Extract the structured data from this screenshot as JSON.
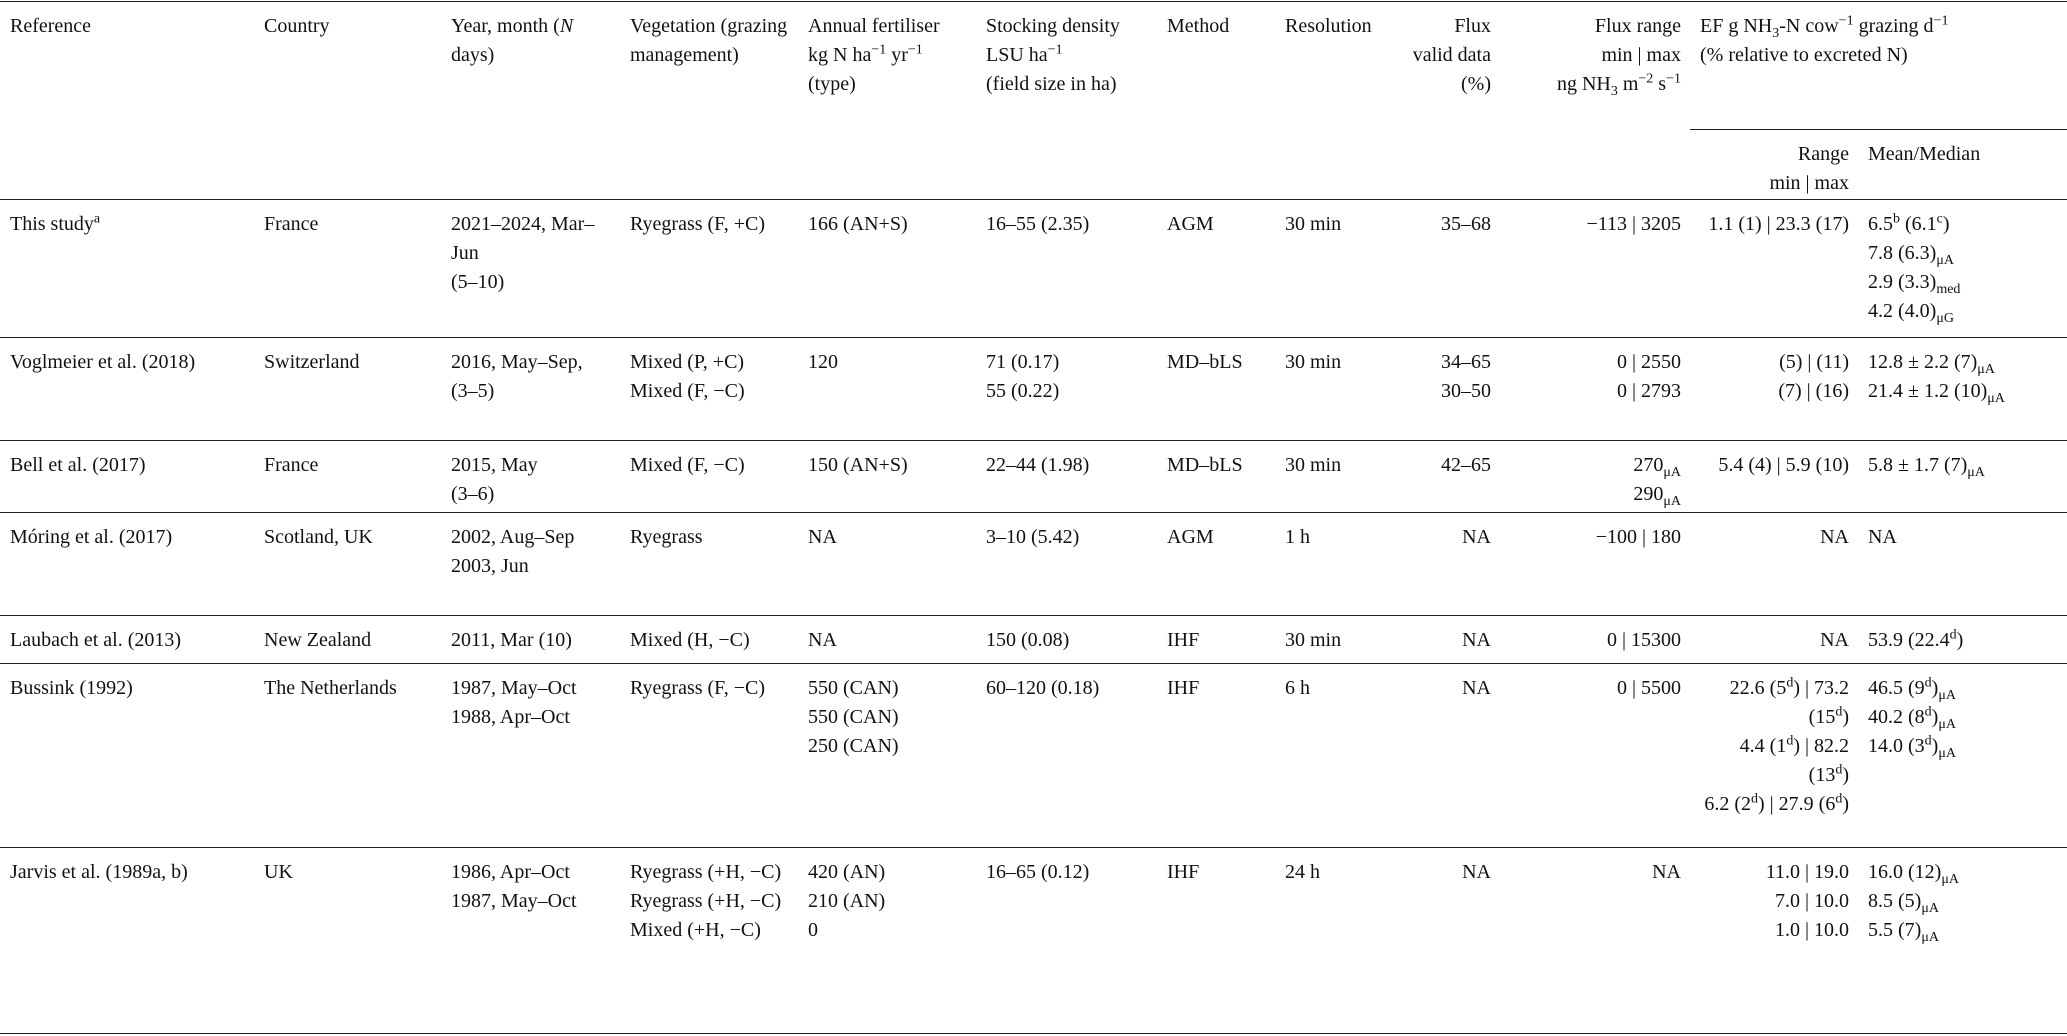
{
  "table": {
    "header": [
      [
        "Reference"
      ],
      [
        "Country"
      ],
      [
        [
          "Year, month (",
          {
            "i": "N"
          },
          " days)"
        ]
      ],
      [
        "Vegetation (grazing management)"
      ],
      [
        "Annual fertiliser",
        [
          "kg N ha",
          {
            "sup": "−1"
          },
          " yr",
          {
            "sup": "−1"
          }
        ],
        "(type)"
      ],
      [
        "Stocking density",
        [
          "LSU ha",
          {
            "sup": "−1"
          }
        ],
        "(field size in ha)"
      ],
      [
        "Method"
      ],
      [
        "Resolution"
      ],
      [
        "Flux valid data (%)"
      ],
      [
        "Flux range",
        "min | max",
        [
          "ng NH",
          {
            "sub": "3"
          },
          " m",
          {
            "sup": "−2"
          },
          " s",
          {
            "sup": "−1"
          }
        ]
      ],
      [
        [
          "EF g NH",
          {
            "sub": "3"
          },
          "-N cow",
          {
            "sup": "−1"
          },
          " grazing d",
          {
            "sup": "−1"
          }
        ],
        "(% relative to excreted N)"
      ]
    ],
    "subheader": [
      [
        "Range",
        "min | max"
      ],
      [
        "Mean/Median"
      ]
    ],
    "rows": [
      [
        [
          [
            "This study",
            {
              "sup": "a"
            }
          ]
        ],
        [
          "France"
        ],
        [
          "2021–2024, Mar–Jun",
          "(5–10)"
        ],
        [
          "Ryegrass (F, +C)"
        ],
        [
          "166 (AN+S)"
        ],
        [
          "16–55 (2.35)"
        ],
        [
          "AGM"
        ],
        [
          "30 min"
        ],
        [
          "35–68"
        ],
        [
          "−113 | 3205"
        ],
        [
          "1.1 (1) | 23.3 (17)"
        ],
        [
          [
            "6.5",
            {
              "sup": "b"
            },
            " (6.1",
            {
              "sup": "c"
            },
            ")"
          ],
          [
            "7.8 (6.3)",
            {
              "sub": "μA"
            }
          ],
          [
            "2.9 (3.3)",
            {
              "sub": "med"
            }
          ],
          [
            "4.2 (4.0)",
            {
              "sub": "μG"
            }
          ]
        ]
      ],
      [
        [
          "Voglmeier et al. (2018)"
        ],
        [
          "Switzerland"
        ],
        [
          "2016, May–Sep, (3–5)"
        ],
        [
          "Mixed (P, +C)",
          "Mixed (F, −C)"
        ],
        [
          "120"
        ],
        [
          "71 (0.17)",
          "55 (0.22)"
        ],
        [
          "MD–bLS"
        ],
        [
          "30 min"
        ],
        [
          "34–65",
          "30–50"
        ],
        [
          "0 | 2550",
          "0 | 2793"
        ],
        [
          "(5) | (11)",
          "(7) | (16)"
        ],
        [
          [
            "12.8 ± 2.2 (7)",
            {
              "sub": "μA"
            }
          ],
          [
            "21.4 ± 1.2 (10)",
            {
              "sub": "μA"
            }
          ]
        ]
      ],
      [
        [
          "Bell et al. (2017)"
        ],
        [
          "France"
        ],
        [
          "2015, May",
          "(3–6)"
        ],
        [
          "Mixed (F, −C)"
        ],
        [
          "150 (AN+S)"
        ],
        [
          "22–44 (1.98)"
        ],
        [
          "MD–bLS"
        ],
        [
          "30 min"
        ],
        [
          "42–65"
        ],
        [
          [
            "270",
            {
              "sub": "μA"
            }
          ],
          [
            "290",
            {
              "sub": "μA"
            }
          ]
        ],
        [
          "5.4 (4) | 5.9 (10)"
        ],
        [
          [
            "5.8 ± 1.7 (7)",
            {
              "sub": "μA"
            }
          ]
        ]
      ],
      [
        [
          "Móring et al. (2017)"
        ],
        [
          "Scotland, UK"
        ],
        [
          "2002, Aug–Sep",
          "2003, Jun"
        ],
        [
          "Ryegrass"
        ],
        [
          "NA"
        ],
        [
          "3–10 (5.42)"
        ],
        [
          "AGM"
        ],
        [
          "1 h"
        ],
        [
          "NA"
        ],
        [
          "−100 | 180"
        ],
        [
          "NA"
        ],
        [
          "NA"
        ]
      ],
      [
        [
          "Laubach et al. (2013)"
        ],
        [
          "New Zealand"
        ],
        [
          "2011, Mar (10)"
        ],
        [
          "Mixed (H, −C)"
        ],
        [
          "NA"
        ],
        [
          "150 (0.08)"
        ],
        [
          "IHF"
        ],
        [
          "30 min"
        ],
        [
          "NA"
        ],
        [
          "0 | 15300"
        ],
        [
          "NA"
        ],
        [
          [
            "53.9 (22.4",
            {
              "sup": "d"
            },
            ")"
          ]
        ]
      ],
      [
        [
          "Bussink (1992)"
        ],
        [
          "The Netherlands"
        ],
        [
          "1987, May–Oct",
          "1988, Apr–Oct"
        ],
        [
          "Ryegrass (F, −C)"
        ],
        [
          "550 (CAN)",
          "550 (CAN)",
          "250 (CAN)"
        ],
        [
          "60–120 (0.18)"
        ],
        [
          "IHF"
        ],
        [
          "6 h"
        ],
        [
          "NA"
        ],
        [
          "0 | 5500"
        ],
        [
          [
            "22.6 (5",
            {
              "sup": "d"
            },
            ") | 73.2 (15",
            {
              "sup": "d"
            },
            ")"
          ],
          [
            "4.4 (1",
            {
              "sup": "d"
            },
            ") | 82.2 (13",
            {
              "sup": "d"
            },
            ")"
          ],
          [
            "6.2 (2",
            {
              "sup": "d"
            },
            ") | 27.9 (6",
            {
              "sup": "d"
            },
            ")"
          ]
        ],
        [
          [
            "46.5 (9",
            {
              "sup": "d"
            },
            ")",
            {
              "sub": "μA"
            }
          ],
          [
            "40.2 (8",
            {
              "sup": "d"
            },
            ")",
            {
              "sub": "μA"
            }
          ],
          [
            "14.0 (3",
            {
              "sup": "d"
            },
            ")",
            {
              "sub": "μA"
            }
          ]
        ]
      ],
      [
        [
          "Jarvis et al. (1989a, b)"
        ],
        [
          "UK"
        ],
        [
          "1986, Apr–Oct",
          "1987, May–Oct"
        ],
        [
          "Ryegrass (+H, −C)",
          "Ryegrass (+H, −C)",
          "Mixed (+H, −C)"
        ],
        [
          "420 (AN)",
          "210 (AN)",
          "0"
        ],
        [
          "16–65 (0.12)"
        ],
        [
          "IHF"
        ],
        [
          "24 h"
        ],
        [
          "NA"
        ],
        [
          "NA"
        ],
        [
          "11.0 | 19.0",
          "7.0 | 10.0",
          "1.0 | 10.0"
        ],
        [
          [
            "16.0 (12)",
            {
              "sub": "μA"
            }
          ],
          [
            "8.5 (5)",
            {
              "sub": "μA"
            }
          ],
          [
            "5.5 (7)",
            {
              "sub": "μA"
            }
          ]
        ]
      ]
    ]
  }
}
